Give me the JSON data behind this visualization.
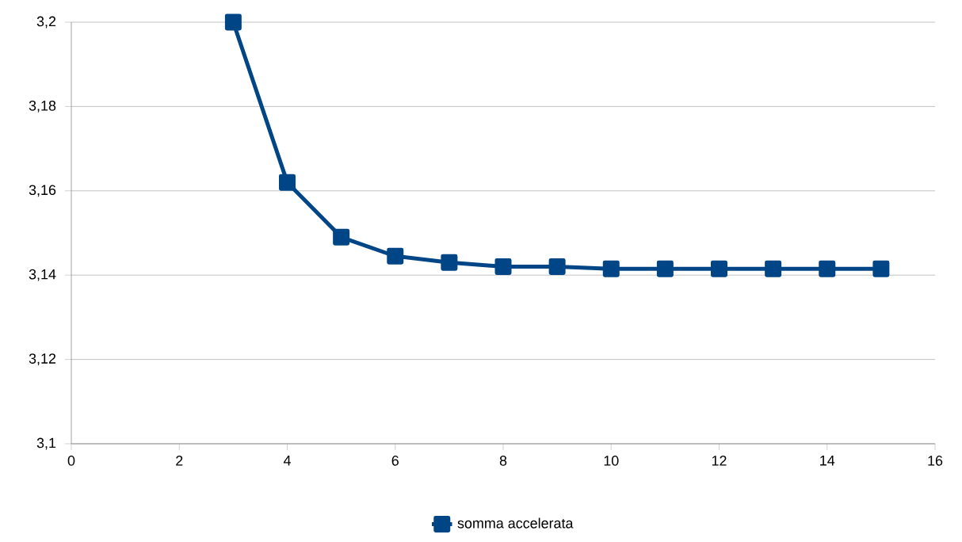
{
  "chart_data": {
    "type": "line",
    "x": [
      3,
      4,
      5,
      6,
      7,
      8,
      9,
      10,
      11,
      12,
      13,
      14,
      15
    ],
    "series": [
      {
        "name": "somma accelerata",
        "color": "#004586",
        "values": [
          3.2,
          3.162,
          3.149,
          3.1445,
          3.143,
          3.142,
          3.142,
          3.1415,
          3.1415,
          3.1415,
          3.1415,
          3.1415,
          3.1415
        ]
      }
    ],
    "xlim": [
      0,
      16
    ],
    "xticks": [
      0,
      2,
      4,
      6,
      8,
      10,
      12,
      14,
      16
    ],
    "ylim": [
      3.1,
      3.2
    ],
    "yticks": [
      {
        "value": 3.1,
        "label": "3,1"
      },
      {
        "value": 3.12,
        "label": "3,12"
      },
      {
        "value": 3.14,
        "label": "3,14"
      },
      {
        "value": 3.16,
        "label": "3,16"
      },
      {
        "value": 3.18,
        "label": "3,18"
      },
      {
        "value": 3.2,
        "label": "3,2"
      }
    ],
    "grid": "y",
    "legend": "bottom",
    "marker": "square",
    "line_style": "solid"
  }
}
